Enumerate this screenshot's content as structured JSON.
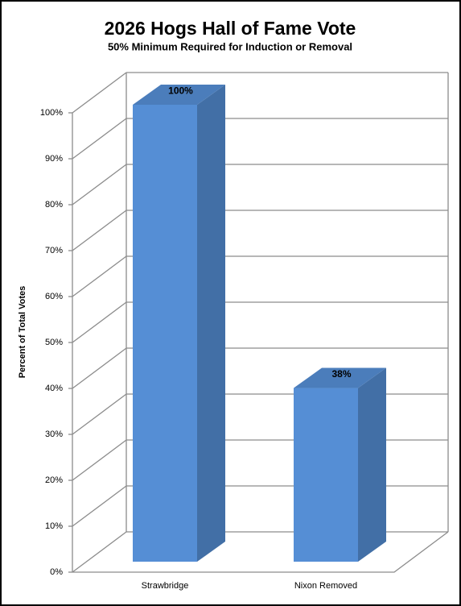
{
  "chart_data": {
    "type": "bar",
    "title": "2026 Hogs Hall of Fame Vote",
    "subtitle": "50% Minimum Required for Induction or Removal",
    "y_label": "Percent of Total Votes",
    "categories": [
      "Strawbridge",
      "Nixon Removed"
    ],
    "values": [
      100,
      38
    ],
    "value_labels": [
      "100%",
      "38%"
    ],
    "color": "#558ed5",
    "ylim": [
      0,
      100
    ],
    "yticks": [
      {
        "value": 0,
        "label": "0%"
      },
      {
        "value": 10,
        "label": "10%"
      },
      {
        "value": 20,
        "label": "20%"
      },
      {
        "value": 30,
        "label": "30%"
      },
      {
        "value": 40,
        "label": "40%"
      },
      {
        "value": 50,
        "label": "50%"
      },
      {
        "value": 60,
        "label": "60%"
      },
      {
        "value": 70,
        "label": "70%"
      },
      {
        "value": 80,
        "label": "80%"
      },
      {
        "value": 90,
        "label": "90%"
      },
      {
        "value": 100,
        "label": "100%"
      }
    ],
    "grid": true
  }
}
